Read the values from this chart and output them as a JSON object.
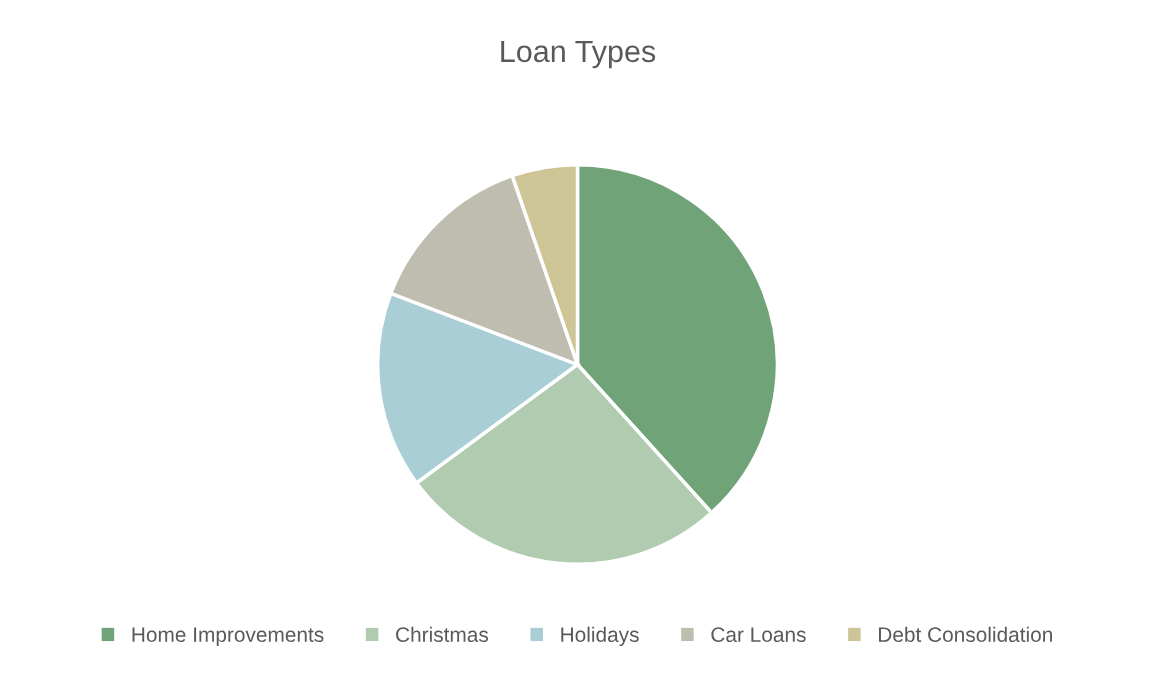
{
  "chart_data": {
    "type": "pie",
    "title": "Loan Types",
    "categories": [
      "Home Improvements",
      "Christmas",
      "Holidays",
      "Car Loans",
      "Debt Consolidation"
    ],
    "values": [
      38.3,
      26.6,
      15.9,
      13.9,
      5.3
    ],
    "colors": [
      "#70a478",
      "#b0cbb0",
      "#a9ced6",
      "#bfbdaf",
      "#cdc595"
    ],
    "legend": "bottom"
  }
}
